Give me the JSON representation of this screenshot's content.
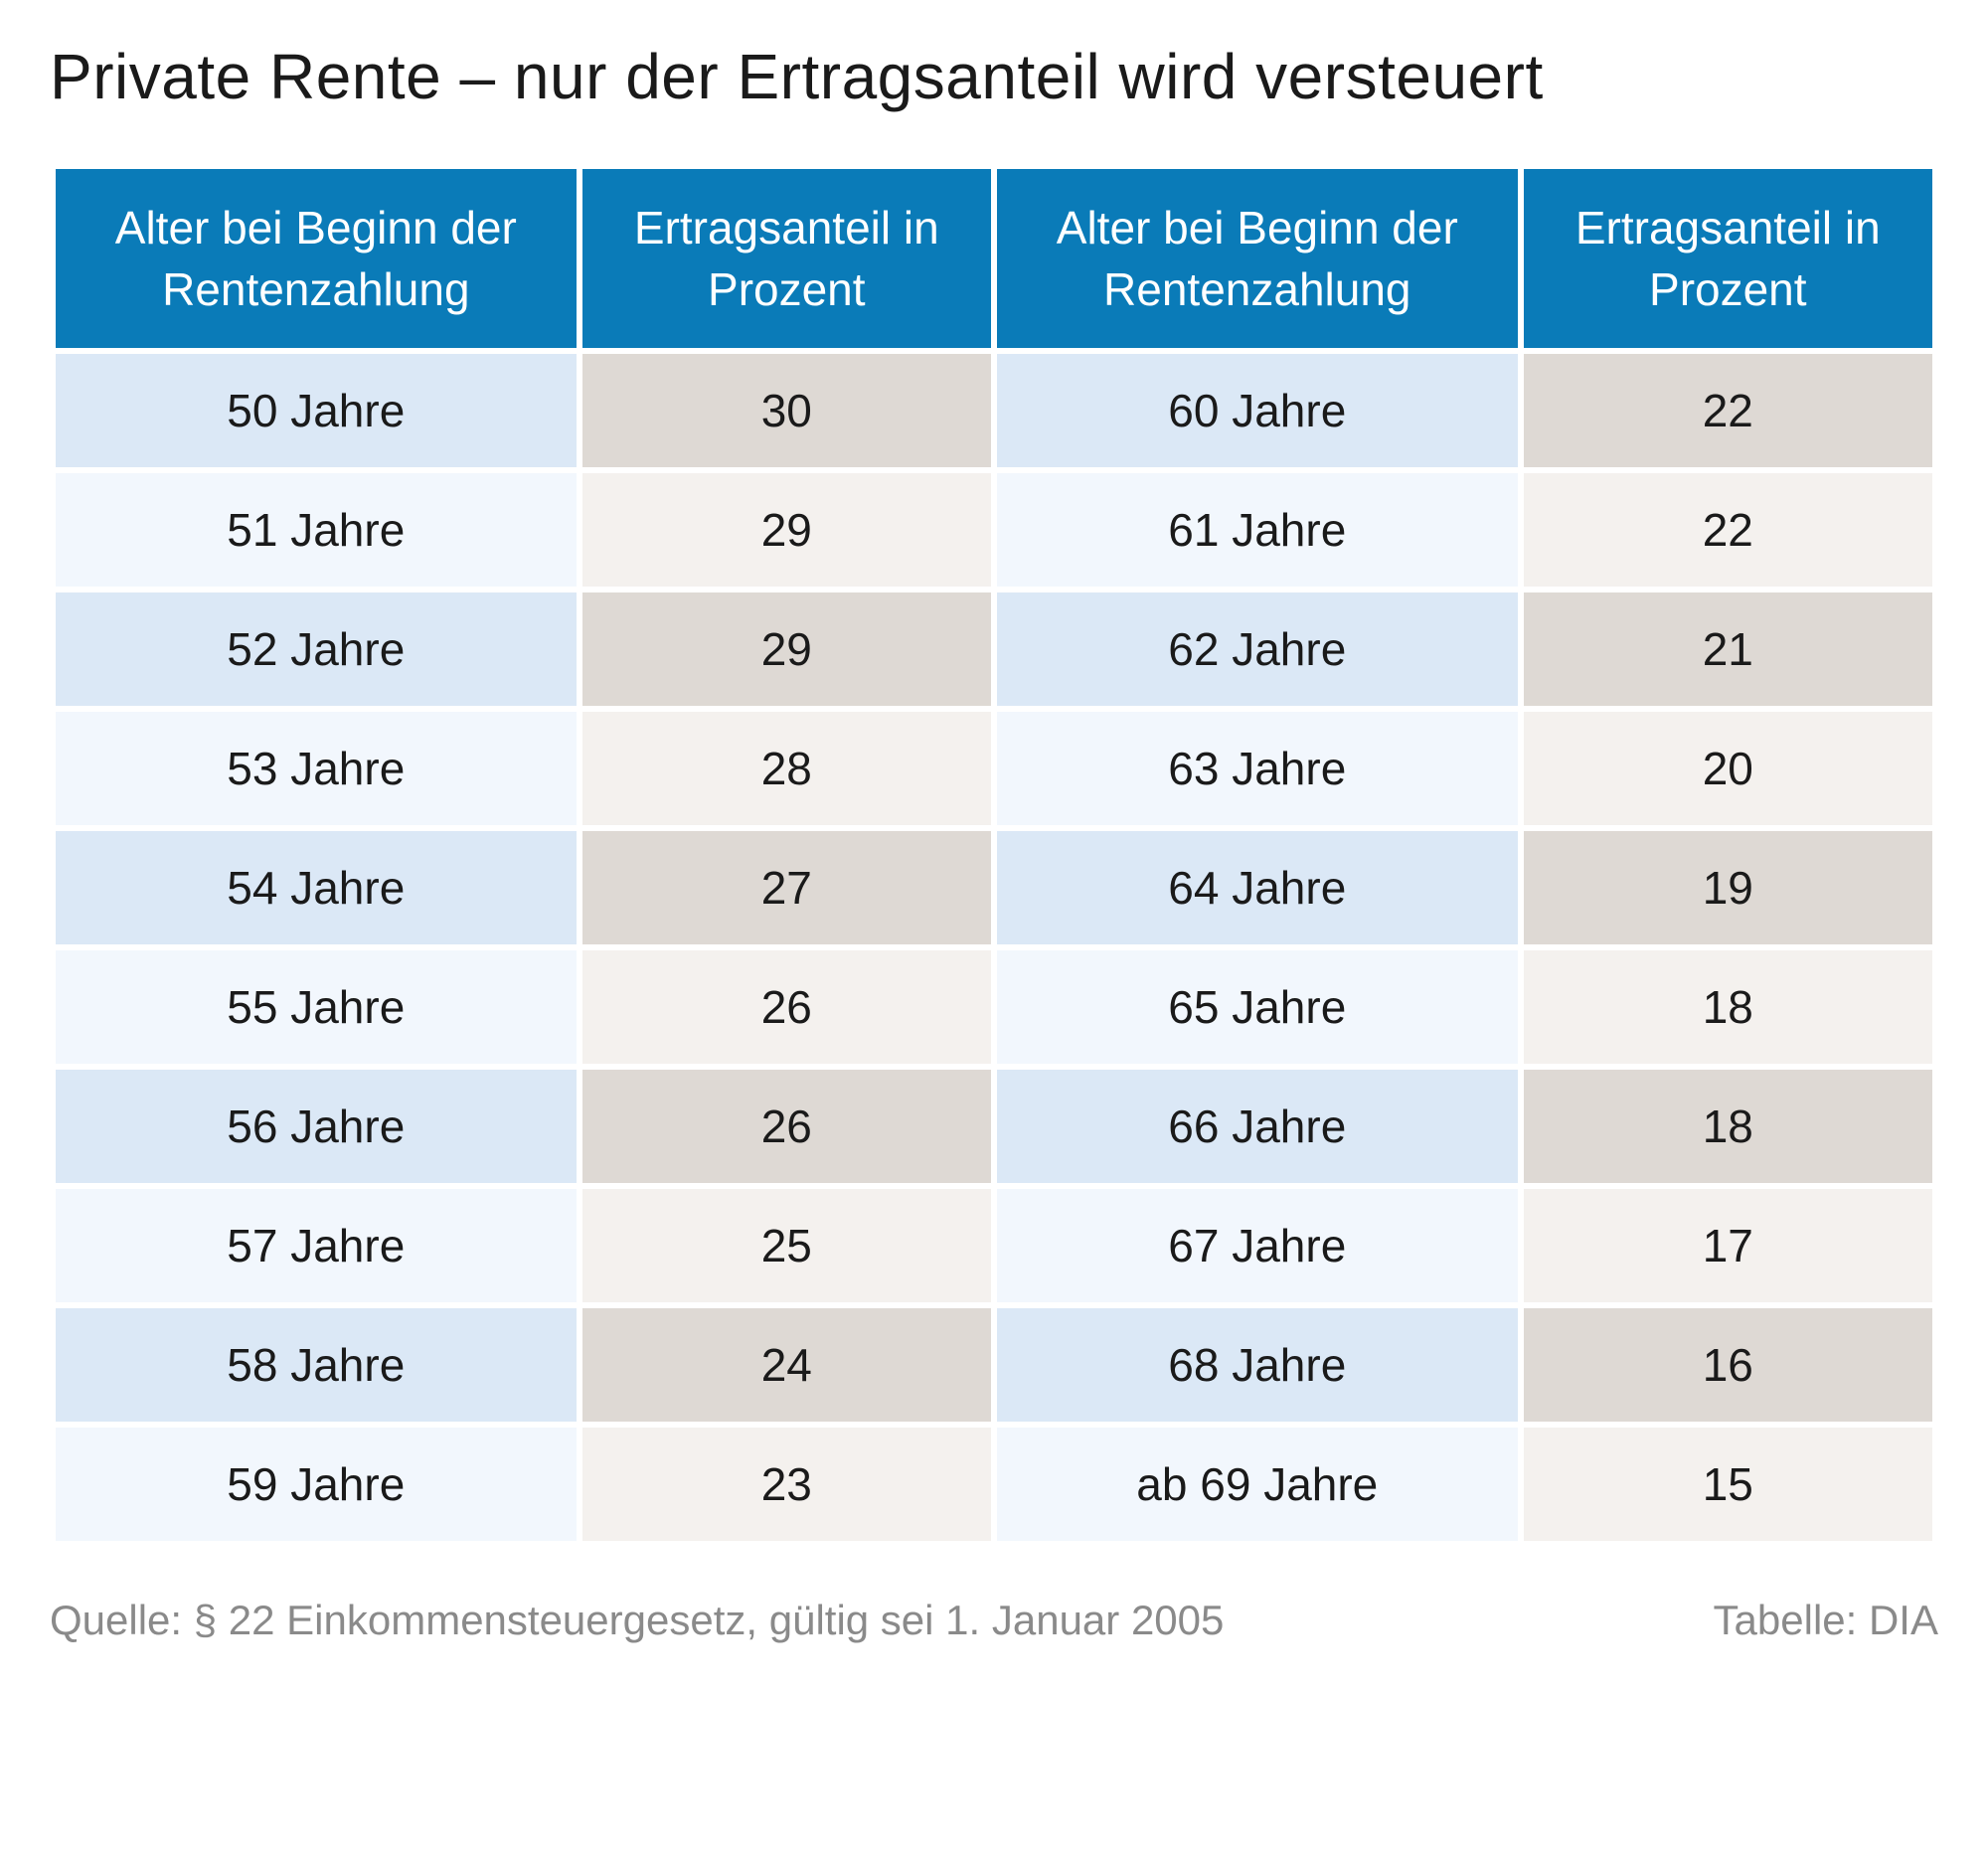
{
  "title": "Private Rente – nur der Ertragsanteil wird versteuert",
  "table": {
    "type": "table",
    "header_bg": "#0a7bb8",
    "header_color": "#ffffff",
    "stripe_blue_dark": "#dbe8f6",
    "stripe_blue_light": "#f2f7fd",
    "stripe_beige_dark": "#ded9d4",
    "stripe_beige_light": "#f4f1ee",
    "text_color": "#1a1a1a",
    "font_size_header": 46,
    "font_size_cell": 46,
    "columns": [
      "Alter bei Beginn der Rentenzahlung",
      "Ertragsanteil in Prozent",
      "Alter bei Beginn der Rentenzahlung",
      "Ertragsanteil in Prozent"
    ],
    "rows": [
      {
        "c0": "50 Jahre",
        "c1": "30",
        "c2": "60 Jahre",
        "c3": "22"
      },
      {
        "c0": "51 Jahre",
        "c1": "29",
        "c2": "61 Jahre",
        "c3": "22"
      },
      {
        "c0": "52 Jahre",
        "c1": "29",
        "c2": "62 Jahre",
        "c3": "21"
      },
      {
        "c0": "53 Jahre",
        "c1": "28",
        "c2": "63 Jahre",
        "c3": "20"
      },
      {
        "c0": "54 Jahre",
        "c1": "27",
        "c2": "64 Jahre",
        "c3": "19"
      },
      {
        "c0": "55 Jahre",
        "c1": "26",
        "c2": "65 Jahre",
        "c3": "18"
      },
      {
        "c0": "56 Jahre",
        "c1": "26",
        "c2": "66 Jahre",
        "c3": "18"
      },
      {
        "c0": "57 Jahre",
        "c1": "25",
        "c2": "67 Jahre",
        "c3": "17"
      },
      {
        "c0": "58 Jahre",
        "c1": "24",
        "c2": "68 Jahre",
        "c3": "16"
      },
      {
        "c0": "59 Jahre",
        "c1": "23",
        "c2": "ab 69 Jahre",
        "c3": "15"
      }
    ]
  },
  "footer": {
    "source": "Quelle: § 22 Einkommensteuergesetz, gültig sei 1. Januar 2005",
    "credit": "Tabelle: DIA",
    "color": "#8a8a8a",
    "font_size": 42
  }
}
